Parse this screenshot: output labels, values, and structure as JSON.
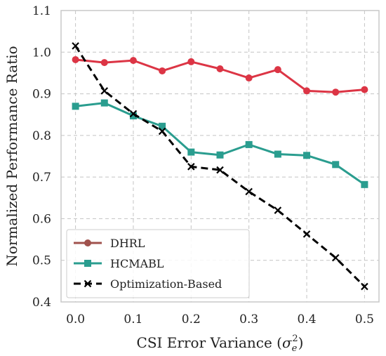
{
  "chart_data": {
    "type": "line",
    "title": "",
    "xlabel": "CSI Error Variance (",
    "xlabel_symbol": "σ",
    "xlabel_sub": "e",
    "xlabel_sup": "2",
    "xlabel_end": ")",
    "ylabel": "Normalized Performance Ratio",
    "xlim": [
      -0.025,
      0.525
    ],
    "ylim": [
      0.4,
      1.1
    ],
    "xticks": [
      "0.0",
      "0.1",
      "0.2",
      "0.3",
      "0.4",
      "0.5"
    ],
    "yticks": [
      "0.4",
      "0.5",
      "0.6",
      "0.7",
      "0.8",
      "0.9",
      "1.0",
      "1.1"
    ],
    "x": [
      0.0,
      0.05,
      0.1,
      0.15,
      0.2,
      0.25,
      0.3,
      0.35,
      0.4,
      0.45,
      0.5
    ],
    "grid": true,
    "legend_position": "lower-left",
    "series": [
      {
        "name": "DHRL",
        "color": "#dc3545",
        "legend_line_color": "#a0524d",
        "marker": "circle",
        "dash": false,
        "values": [
          0.982,
          0.975,
          0.98,
          0.955,
          0.977,
          0.96,
          0.938,
          0.958,
          0.907,
          0.904,
          0.91
        ]
      },
      {
        "name": "HCMABL",
        "color": "#2a9d8f",
        "legend_line_color": "#2a9d8f",
        "marker": "square",
        "dash": false,
        "values": [
          0.87,
          0.878,
          0.847,
          0.822,
          0.76,
          0.753,
          0.778,
          0.755,
          0.752,
          0.73,
          0.682
        ]
      },
      {
        "name": "Optimization-Based",
        "color": "#000000",
        "legend_line_color": "#000000",
        "marker": "x",
        "dash": true,
        "values": [
          1.015,
          0.907,
          0.852,
          0.81,
          0.725,
          0.717,
          0.665,
          0.62,
          0.563,
          0.506,
          0.437
        ]
      }
    ]
  }
}
